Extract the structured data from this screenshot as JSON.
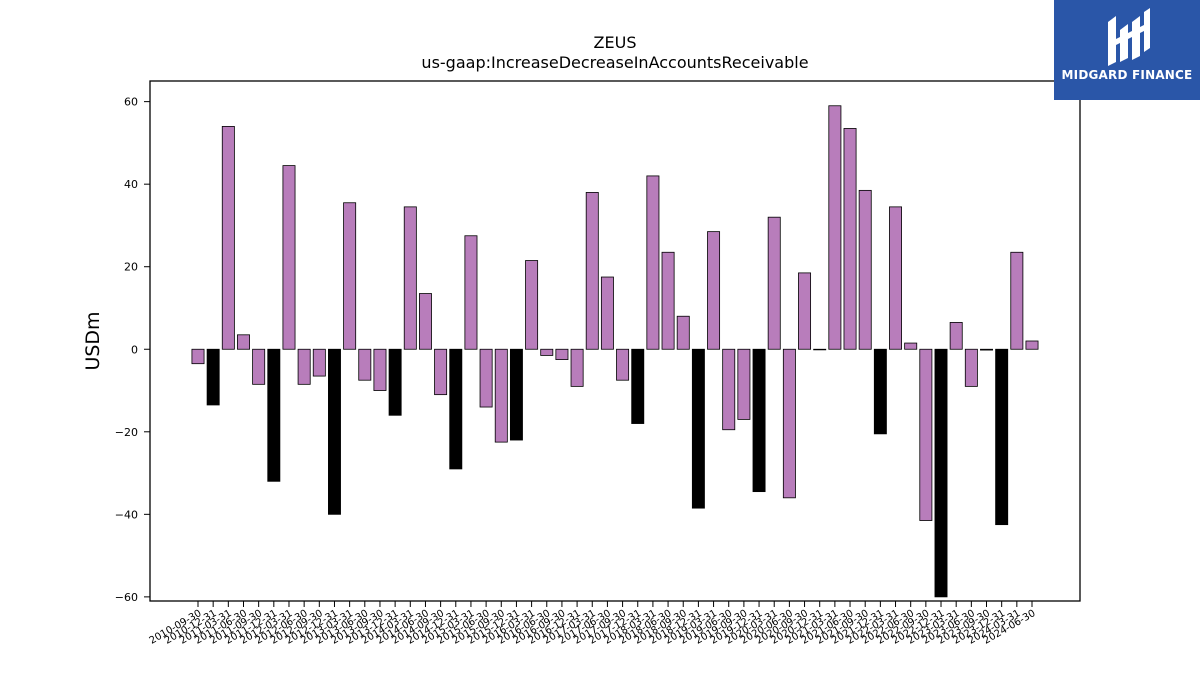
{
  "brand": {
    "name": "MIDGARD FINANCE",
    "color": "#2a56a8",
    "icon": "midgard-logo-icon"
  },
  "colors": {
    "positive_bar": "#b87dbb",
    "negative_fill": "#b87dbb"
  },
  "chart_data": {
    "type": "bar",
    "title": "ZEUS",
    "subtitle": "us-gaap:IncreaseDecreaseInAccountsReceivable",
    "xlabel": "",
    "ylabel": "USDm",
    "ylim": [
      -61,
      65
    ],
    "yticks": [
      -60,
      -40,
      -20,
      0,
      20,
      40,
      60
    ],
    "grid": false,
    "categories": [
      "2010-09-30",
      "2010-12-31",
      "2011-03-31",
      "2011-06-30",
      "2011-09-30",
      "2011-12-31",
      "2012-03-31",
      "2012-06-30",
      "2012-09-30",
      "2012-12-31",
      "2013-03-31",
      "2013-06-30",
      "2013-09-30",
      "2013-12-31",
      "2014-03-31",
      "2014-06-30",
      "2014-09-30",
      "2014-12-31",
      "2015-03-31",
      "2015-06-30",
      "2015-09-30",
      "2015-12-31",
      "2016-03-31",
      "2016-06-30",
      "2016-09-30",
      "2016-12-31",
      "2017-03-31",
      "2017-06-30",
      "2017-09-30",
      "2017-12-31",
      "2018-03-31",
      "2018-06-30",
      "2018-09-30",
      "2018-12-31",
      "2019-03-31",
      "2019-06-30",
      "2019-09-30",
      "2019-12-31",
      "2020-03-31",
      "2020-06-30",
      "2020-09-30",
      "2020-12-31",
      "2021-03-31",
      "2021-06-30",
      "2021-09-30",
      "2021-12-31",
      "2022-03-31",
      "2022-06-30",
      "2022-09-30",
      "2022-12-31",
      "2023-03-31",
      "2023-06-30",
      "2023-09-30",
      "2023-12-31",
      "2024-03-31",
      "2024-06-30"
    ],
    "values": [
      -3.5,
      -13.5,
      54,
      3.5,
      -8.5,
      -32,
      44.5,
      -8.5,
      -6.5,
      -40,
      35.5,
      -7.5,
      -10,
      -16,
      34.5,
      13.5,
      -11,
      -29,
      27.5,
      -14,
      -22.5,
      -22,
      21.5,
      -1.5,
      -2.5,
      -9,
      38,
      17.5,
      -7.5,
      -18,
      42,
      23.5,
      8,
      -38.5,
      28.5,
      -19.5,
      -17,
      -34.5,
      32,
      -36,
      18.5,
      0,
      59,
      53.5,
      38.5,
      -20.5,
      34.5,
      1.5,
      -41.5,
      -60,
      6.5,
      -9,
      -0.2,
      -42.5,
      23.5,
      2
    ],
    "highlight": [
      false,
      true,
      false,
      false,
      false,
      true,
      false,
      false,
      false,
      true,
      false,
      false,
      false,
      true,
      false,
      false,
      false,
      true,
      false,
      false,
      false,
      true,
      false,
      false,
      false,
      false,
      false,
      false,
      false,
      true,
      false,
      false,
      false,
      true,
      false,
      false,
      false,
      true,
      false,
      false,
      false,
      false,
      false,
      false,
      false,
      true,
      false,
      false,
      false,
      true,
      false,
      false,
      false,
      true,
      false,
      false
    ]
  }
}
